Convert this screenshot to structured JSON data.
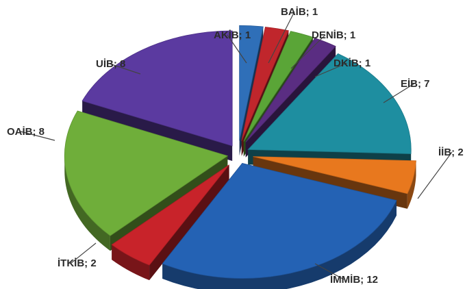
{
  "chart_data": {
    "type": "pie",
    "style": "3d-exploded",
    "title": "",
    "slices": [
      {
        "label": "AKİB; 1",
        "value": 1,
        "color": "#2f6fb8"
      },
      {
        "label": "BAİB; 1",
        "value": 1,
        "color": "#c0262c"
      },
      {
        "label": "DENİB; 1",
        "value": 1,
        "color": "#5aa537"
      },
      {
        "label": "DKİB; 1",
        "value": 1,
        "color": "#5a2d82"
      },
      {
        "label": "EİB; 7",
        "value": 7,
        "color": "#1e8ea0"
      },
      {
        "label": "İİB; 2",
        "value": 2,
        "color": "#e8781e"
      },
      {
        "label": "İMMİB; 12",
        "value": 12,
        "color": "#2462b4"
      },
      {
        "label": "İTKİB; 2",
        "value": 2,
        "color": "#c8232a"
      },
      {
        "label": "OAİB; 8",
        "value": 8,
        "color": "#6fae3a"
      },
      {
        "label": "UİB; 8",
        "value": 8,
        "color": "#5b3aa0"
      }
    ]
  }
}
